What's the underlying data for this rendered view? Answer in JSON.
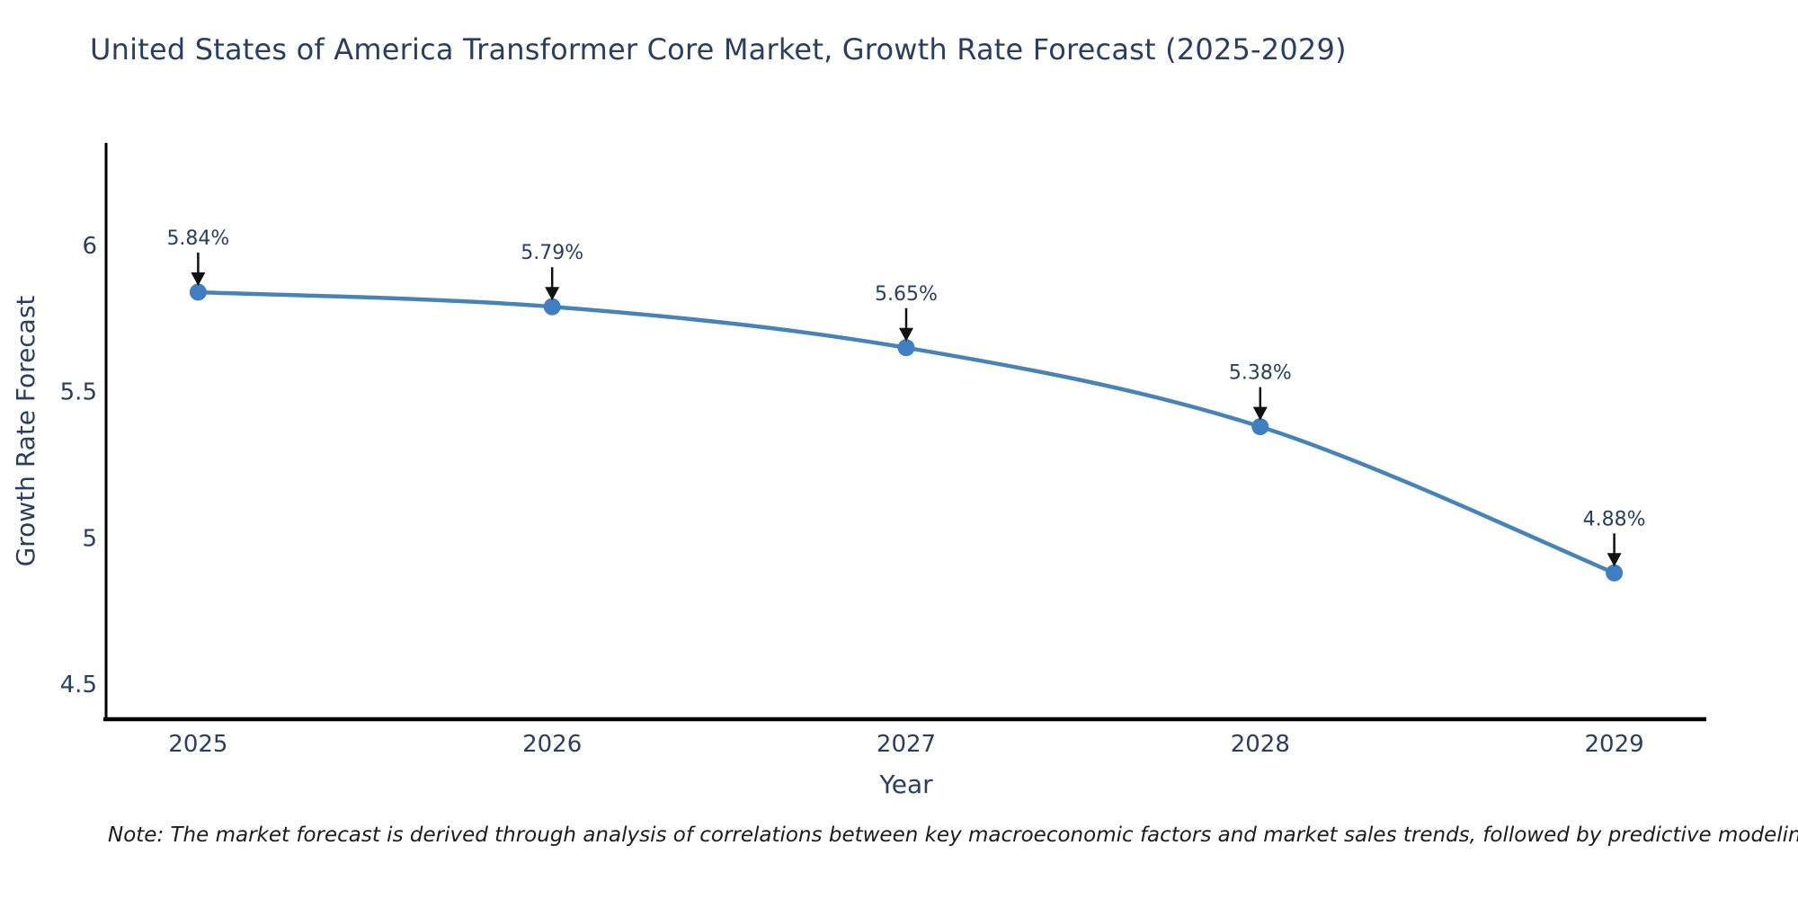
{
  "title": "United States of America Transformer Core Market, Growth Rate Forecast (2025-2029)",
  "note": "Note: The market forecast is derived through analysis of correlations between key macroeconomic factors and market sales trends, followed by predictive modeling to project future sales",
  "chart_data": {
    "type": "line",
    "x": [
      2025,
      2026,
      2027,
      2028,
      2029
    ],
    "values": [
      5.84,
      5.79,
      5.65,
      5.38,
      4.88
    ],
    "point_labels": [
      "5.84%",
      "5.79%",
      "5.65%",
      "5.38%",
      "4.88%"
    ],
    "xtick_labels": [
      "2025",
      "2026",
      "2027",
      "2028",
      "2029"
    ],
    "yticks": [
      4.5,
      5,
      5.5,
      6
    ],
    "ytick_labels": [
      "4.5",
      "5",
      "5.5",
      "6"
    ],
    "xlabel": "Year",
    "ylabel": "Growth Rate Forecast",
    "xlim": [
      2024.74,
      2029.26
    ],
    "ylim": [
      4.38,
      6.35
    ],
    "grid": false,
    "legend": "none",
    "line_color": "#4783b8",
    "marker_color": "#3f7fc1",
    "axis_color": "#000000",
    "text_color": "#2a3f5f",
    "annotation_color": "#2a3f5f",
    "arrow_color": "#111111"
  }
}
